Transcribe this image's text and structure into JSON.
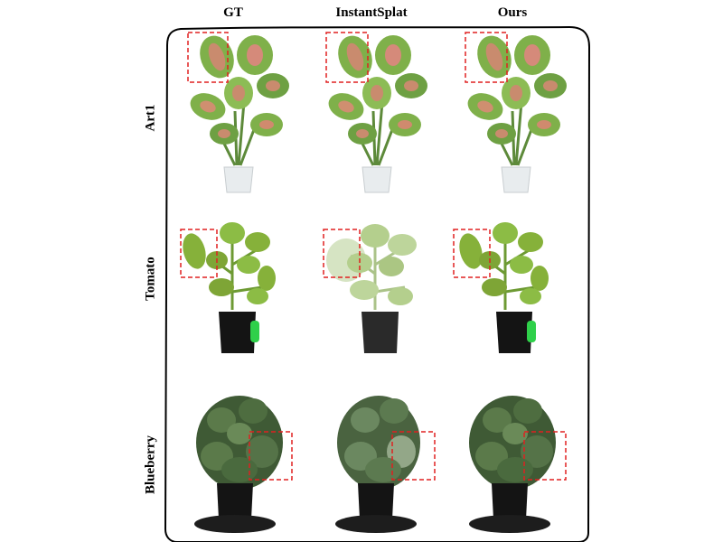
{
  "columns": [
    "GT",
    "InstantSplat",
    "Ours"
  ],
  "rows": [
    "Art1",
    "Tomato",
    "Blueberry"
  ],
  "colors": {
    "highlight_box": "#e02020",
    "frame": "#000000",
    "leaf_pink": "#c98b6e",
    "leaf_green": "#7fb04a",
    "tomato_leaf": "#86b13a",
    "blueberry_leaf": "#3f5a35",
    "pot_white": "#e8ecee",
    "pot_black": "#141414",
    "tray_green": "#2fd04a"
  },
  "images": [
    {
      "row": "Art1",
      "column": "GT",
      "plant": "caladium-in-white-pot"
    },
    {
      "row": "Art1",
      "column": "InstantSplat",
      "plant": "caladium-in-white-pot"
    },
    {
      "row": "Art1",
      "column": "Ours",
      "plant": "caladium-in-white-pot"
    },
    {
      "row": "Tomato",
      "column": "GT",
      "plant": "tomato-in-black-pot"
    },
    {
      "row": "Tomato",
      "column": "InstantSplat",
      "plant": "tomato-in-black-pot-blurry"
    },
    {
      "row": "Tomato",
      "column": "Ours",
      "plant": "tomato-in-black-pot"
    },
    {
      "row": "Blueberry",
      "column": "GT",
      "plant": "blueberry-bush-on-stand"
    },
    {
      "row": "Blueberry",
      "column": "InstantSplat",
      "plant": "blueberry-bush-on-stand-blurry"
    },
    {
      "row": "Blueberry",
      "column": "Ours",
      "plant": "blueberry-bush-on-stand"
    }
  ]
}
